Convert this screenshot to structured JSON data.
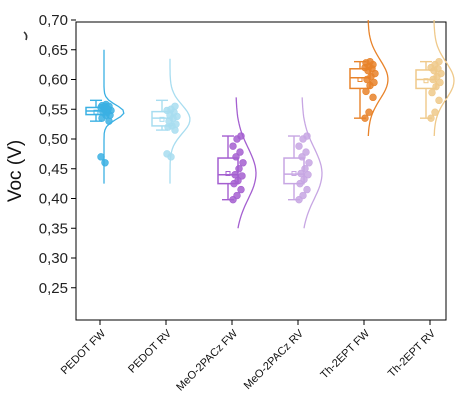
{
  "chart_data": {
    "type": "box-scatter",
    "ylabel": "Voc (V)",
    "ylim": [
      0.2,
      0.7
    ],
    "yticks": [
      "0,25",
      "0,30",
      "0,35",
      "0,40",
      "0,45",
      "0,50",
      "0,55",
      "0,60",
      "0,65",
      "0,70"
    ],
    "ytick_values": [
      0.25,
      0.3,
      0.35,
      0.4,
      0.45,
      0.5,
      0.55,
      0.6,
      0.65,
      0.7
    ],
    "categories": [
      "PEDOT FW",
      "PEDOT RV",
      "MeO-2PACz FW",
      "MeO-2PACz RV",
      "Th-2EPT FW",
      "Th-2EPT RV"
    ],
    "series": [
      {
        "category": "PEDOT FW",
        "color": "#3bb0e3",
        "box": {
          "q1": 0.541,
          "median": 0.547,
          "q3": 0.553,
          "mean": 0.545,
          "whisker_low": 0.53,
          "whisker_high": 0.565
        },
        "points": [
          0.47,
          0.46,
          0.53,
          0.535,
          0.54,
          0.54,
          0.545,
          0.545,
          0.548,
          0.55,
          0.55,
          0.553,
          0.555,
          0.555,
          0.556,
          0.558
        ],
        "outliers": [
          0.46,
          0.47
        ],
        "curve_range": [
          0.425,
          0.65
        ]
      },
      {
        "category": "PEDOT RV",
        "color": "#a8ddf0",
        "box": {
          "q1": 0.522,
          "median": 0.535,
          "q3": 0.546,
          "mean": 0.533,
          "whisker_low": 0.515,
          "whisker_high": 0.565
        },
        "points": [
          0.475,
          0.47,
          0.515,
          0.52,
          0.522,
          0.525,
          0.53,
          0.535,
          0.538,
          0.54,
          0.545,
          0.548,
          0.55,
          0.555
        ],
        "outliers": [
          0.47,
          0.475
        ],
        "curve_range": [
          0.425,
          0.635
        ]
      },
      {
        "category": "MeO-2PACz FW",
        "color": "#a45fd0",
        "box": {
          "q1": 0.425,
          "median": 0.44,
          "q3": 0.468,
          "mean": 0.442,
          "whisker_low": 0.398,
          "whisker_high": 0.505
        },
        "points": [
          0.398,
          0.405,
          0.415,
          0.425,
          0.43,
          0.438,
          0.44,
          0.45,
          0.46,
          0.47,
          0.478,
          0.488,
          0.5,
          0.505
        ],
        "outliers": [],
        "curve_range": [
          0.35,
          0.57
        ]
      },
      {
        "category": "MeO-2PACz RV",
        "color": "#c7a6e3",
        "box": {
          "q1": 0.425,
          "median": 0.441,
          "q3": 0.468,
          "mean": 0.442,
          "whisker_low": 0.398,
          "whisker_high": 0.505
        },
        "points": [
          0.398,
          0.405,
          0.415,
          0.425,
          0.432,
          0.44,
          0.442,
          0.45,
          0.46,
          0.47,
          0.478,
          0.488,
          0.5,
          0.505
        ],
        "outliers": [],
        "curve_range": [
          0.35,
          0.57
        ]
      },
      {
        "category": "Th-2EPT FW",
        "color": "#e8832a",
        "box": {
          "q1": 0.585,
          "median": 0.603,
          "q3": 0.618,
          "mean": 0.6,
          "whisker_low": 0.535,
          "whisker_high": 0.63
        },
        "points": [
          0.535,
          0.545,
          0.57,
          0.58,
          0.59,
          0.595,
          0.6,
          0.605,
          0.61,
          0.615,
          0.618,
          0.62,
          0.622,
          0.625,
          0.628,
          0.63
        ],
        "outliers": [],
        "curve_range": [
          0.505,
          0.7
        ]
      },
      {
        "category": "Th-2EPT RV",
        "color": "#efc98a",
        "box": {
          "q1": 0.585,
          "median": 0.6,
          "q3": 0.616,
          "mean": 0.598,
          "whisker_low": 0.535,
          "whisker_high": 0.63
        },
        "points": [
          0.535,
          0.545,
          0.565,
          0.578,
          0.588,
          0.595,
          0.6,
          0.605,
          0.61,
          0.615,
          0.618,
          0.62,
          0.625,
          0.63
        ],
        "outliers": [],
        "curve_range": [
          0.505,
          0.7
        ]
      }
    ],
    "grid": false,
    "legend": "none"
  }
}
